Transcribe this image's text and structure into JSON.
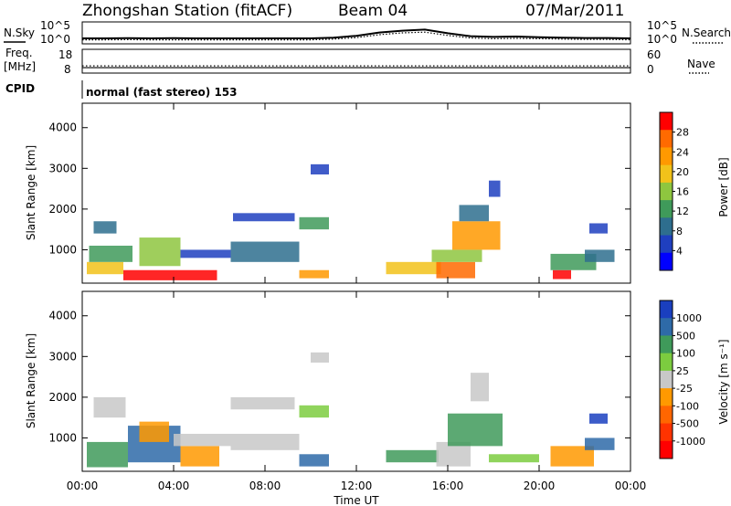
{
  "header": {
    "station": "Zhongshan Station (fitACF)",
    "beam": "Beam 04",
    "date": "07/Mar/2011"
  },
  "strip_labels": {
    "nsky": "N.Sky",
    "nsearch": "N.Search",
    "freq_line1": "Freq.",
    "freq_line2": "[MHz]",
    "nave": "Nave",
    "cpid": "CPID",
    "cpid_value": "normal (fast stereo) 153"
  },
  "colors": {
    "noise_sky": "#000000",
    "noise_search": "#000000"
  },
  "chart_data": [
    {
      "type": "line",
      "name": "noise",
      "ylabels_left": [
        "10^5",
        "10^0"
      ],
      "ylabels_right": [
        "10^5",
        "10^0"
      ],
      "x_hours": [
        0,
        1,
        2,
        3,
        4,
        5,
        6,
        7,
        8,
        9,
        10,
        11,
        12,
        13,
        14,
        15,
        16,
        17,
        18,
        19,
        20,
        21,
        22,
        23,
        24
      ],
      "series": [
        {
          "name": "N.Sky",
          "style": "solid",
          "values": [
            1.0,
            1.0,
            1.05,
            1.0,
            1.05,
            1.0,
            1.0,
            1.0,
            1.0,
            1.0,
            1.0,
            1.2,
            1.7,
            2.6,
            3.1,
            3.4,
            2.4,
            1.6,
            1.4,
            1.5,
            1.3,
            1.2,
            1.1,
            1.1,
            1.0
          ]
        },
        {
          "name": "N.Search",
          "style": "dotted",
          "values": [
            0.6,
            0.6,
            0.65,
            0.6,
            0.6,
            0.6,
            0.6,
            0.6,
            0.6,
            0.6,
            0.6,
            0.8,
            1.2,
            2.0,
            2.5,
            2.7,
            1.8,
            1.1,
            0.9,
            1.0,
            0.9,
            0.8,
            0.7,
            0.7,
            0.6
          ]
        }
      ]
    },
    {
      "type": "line",
      "name": "frequency-nave",
      "left_ticks": [
        "18",
        "8"
      ],
      "right_ticks": [
        "60",
        "0"
      ],
      "x_hours": [
        0,
        24
      ],
      "series": [
        {
          "name": "Freq",
          "style": "solid",
          "values": [
            9.8,
            9.8
          ]
        },
        {
          "name": "Nave",
          "style": "dotted",
          "values": [
            16,
            16
          ]
        }
      ]
    },
    {
      "type": "heatmap",
      "name": "power",
      "ylabel": "Slant Range [km]",
      "yticks": [
        "4000",
        "3000",
        "2000",
        "1000"
      ],
      "yvalues": [
        4000,
        3000,
        2000,
        1000
      ],
      "ylim": [
        180,
        4600
      ],
      "colorbar_label": "Power [dB]",
      "colorbar_ticks": [
        "28",
        "24",
        "20",
        "16",
        "12",
        "8",
        "4"
      ],
      "colorbar_colors": [
        "#ff0000",
        "#ff6a00",
        "#ff9900",
        "#f2c21a",
        "#8ec63f",
        "#3f9a5a",
        "#2e6e8e",
        "#1f3fbf",
        "#0000ff"
      ],
      "patches": [
        {
          "t0": 0.2,
          "t1": 1.8,
          "r0": 400,
          "r1": 700,
          "c": 3
        },
        {
          "t0": 1.8,
          "t1": 5.9,
          "r0": 250,
          "r1": 500,
          "c": 0
        },
        {
          "t0": 0.3,
          "t1": 2.2,
          "r0": 700,
          "r1": 1100,
          "c": 5
        },
        {
          "t0": 2.5,
          "t1": 4.3,
          "r0": 600,
          "r1": 1300,
          "c": 4
        },
        {
          "t0": 0.5,
          "t1": 1.5,
          "r0": 1400,
          "r1": 1700,
          "c": 6
        },
        {
          "t0": 4.3,
          "t1": 6.5,
          "r0": 800,
          "r1": 1000,
          "c": 7
        },
        {
          "t0": 6.5,
          "t1": 9.5,
          "r0": 700,
          "r1": 1200,
          "c": 6
        },
        {
          "t0": 9.5,
          "t1": 10.8,
          "r0": 300,
          "r1": 500,
          "c": 2
        },
        {
          "t0": 9.5,
          "t1": 10.8,
          "r0": 1500,
          "r1": 1800,
          "c": 5
        },
        {
          "t0": 6.6,
          "t1": 9.3,
          "r0": 1700,
          "r1": 1900,
          "c": 7
        },
        {
          "t0": 10.0,
          "t1": 10.8,
          "r0": 2850,
          "r1": 3100,
          "c": 7
        },
        {
          "t0": 13.3,
          "t1": 15.7,
          "r0": 400,
          "r1": 700,
          "c": 3
        },
        {
          "t0": 15.5,
          "t1": 17.2,
          "r0": 300,
          "r1": 700,
          "c": 1
        },
        {
          "t0": 15.3,
          "t1": 17.5,
          "r0": 700,
          "r1": 1000,
          "c": 4
        },
        {
          "t0": 16.2,
          "t1": 18.3,
          "r0": 1000,
          "r1": 1700,
          "c": 2
        },
        {
          "t0": 16.5,
          "t1": 17.8,
          "r0": 1700,
          "r1": 2100,
          "c": 6
        },
        {
          "t0": 17.8,
          "t1": 18.3,
          "r0": 2300,
          "r1": 2700,
          "c": 7
        },
        {
          "t0": 20.6,
          "t1": 21.4,
          "r0": 280,
          "r1": 500,
          "c": 0
        },
        {
          "t0": 20.5,
          "t1": 22.5,
          "r0": 500,
          "r1": 900,
          "c": 5
        },
        {
          "t0": 22.0,
          "t1": 23.3,
          "r0": 700,
          "r1": 1000,
          "c": 6
        },
        {
          "t0": 22.2,
          "t1": 23.0,
          "r0": 1400,
          "r1": 1650,
          "c": 7
        }
      ]
    },
    {
      "type": "heatmap",
      "name": "velocity",
      "ylabel": "Slant Range [km]",
      "yticks": [
        "4000",
        "3000",
        "2000",
        "1000"
      ],
      "yvalues": [
        4000,
        3000,
        2000,
        1000
      ],
      "ylim": [
        180,
        4600
      ],
      "colorbar_label": "Velocity [m s⁻¹]",
      "colorbar_ticks": [
        "1000",
        "500",
        "100",
        "25",
        "-25",
        "-100",
        "-500",
        "-1000"
      ],
      "colorbar_colors": [
        "#1a3fbf",
        "#2e6aa8",
        "#3f9a5a",
        "#7ccc3f",
        "#c8c8c8",
        "#ff9900",
        "#ff6600",
        "#ff3300",
        "#ff0000"
      ],
      "patches": [
        {
          "t0": 0.2,
          "t1": 2.0,
          "r0": 280,
          "r1": 900,
          "c": 2
        },
        {
          "t0": 2.0,
          "t1": 4.3,
          "r0": 400,
          "r1": 1300,
          "c": 1
        },
        {
          "t0": 0.5,
          "t1": 1.9,
          "r0": 1500,
          "r1": 2000,
          "c": 4
        },
        {
          "t0": 2.5,
          "t1": 3.8,
          "r0": 900,
          "r1": 1400,
          "c": 5
        },
        {
          "t0": 4.3,
          "t1": 6.0,
          "r0": 300,
          "r1": 800,
          "c": 5
        },
        {
          "t0": 4.0,
          "t1": 6.5,
          "r0": 800,
          "r1": 1100,
          "c": 4
        },
        {
          "t0": 6.5,
          "t1": 9.5,
          "r0": 700,
          "r1": 1100,
          "c": 4
        },
        {
          "t0": 6.5,
          "t1": 9.3,
          "r0": 1700,
          "r1": 2000,
          "c": 4
        },
        {
          "t0": 9.5,
          "t1": 10.8,
          "r0": 300,
          "r1": 600,
          "c": 1
        },
        {
          "t0": 9.5,
          "t1": 10.8,
          "r0": 1500,
          "r1": 1800,
          "c": 3
        },
        {
          "t0": 10.0,
          "t1": 10.8,
          "r0": 2850,
          "r1": 3100,
          "c": 4
        },
        {
          "t0": 13.3,
          "t1": 15.6,
          "r0": 400,
          "r1": 700,
          "c": 2
        },
        {
          "t0": 15.5,
          "t1": 17.0,
          "r0": 300,
          "r1": 900,
          "c": 4
        },
        {
          "t0": 16.0,
          "t1": 18.4,
          "r0": 800,
          "r1": 1600,
          "c": 2
        },
        {
          "t0": 17.0,
          "t1": 17.8,
          "r0": 1900,
          "r1": 2600,
          "c": 4
        },
        {
          "t0": 17.8,
          "t1": 20.0,
          "r0": 400,
          "r1": 600,
          "c": 3
        },
        {
          "t0": 20.5,
          "t1": 22.4,
          "r0": 300,
          "r1": 800,
          "c": 5
        },
        {
          "t0": 22.0,
          "t1": 23.3,
          "r0": 700,
          "r1": 1000,
          "c": 1
        },
        {
          "t0": 22.2,
          "t1": 23.0,
          "r0": 1350,
          "r1": 1600,
          "c": 0
        }
      ]
    }
  ],
  "xaxis": {
    "ticks": [
      "00:00",
      "04:00",
      "08:00",
      "12:00",
      "16:00",
      "20:00",
      "00:00"
    ],
    "tick_hours": [
      0,
      4,
      8,
      12,
      16,
      20,
      24
    ],
    "label": "Time UT"
  }
}
